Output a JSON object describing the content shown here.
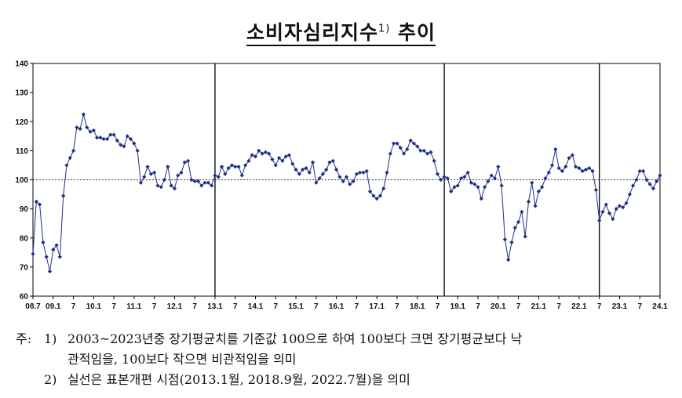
{
  "title": {
    "text": "소비자심리지수",
    "sup": "1)",
    "suffix": "추이"
  },
  "chart_data": {
    "type": "line",
    "title": "소비자심리지수 추이",
    "xlabel": "",
    "ylabel": "",
    "ylim": [
      60,
      140
    ],
    "y_ticks": [
      "60",
      "70",
      "80",
      "90",
      "100",
      "110",
      "120",
      "130",
      "140"
    ],
    "x_tick_labels": [
      "08.7",
      "09.1",
      "7",
      "10.1",
      "7",
      "11.1",
      "7",
      "12.1",
      "7",
      "13.1",
      "7",
      "14.1",
      "7",
      "15.1",
      "7",
      "16.1",
      "7",
      "17.1",
      "7",
      "18.1",
      "7",
      "19.1",
      "7",
      "20.1",
      "7",
      "21.1",
      "7",
      "22.1",
      "7",
      "23.1",
      "7",
      "24.1"
    ],
    "reference_line": 100,
    "sample_breaks": [
      "2013.1",
      "2018.9",
      "2022.7"
    ],
    "grid": false,
    "legend": "none",
    "colors": {
      "series": "#1f2f86",
      "reference": "#333333",
      "breaks": "#000000"
    },
    "start": "2008.7",
    "series": [
      {
        "values": [
          74.5,
          92.5,
          91.5,
          78.5,
          73.5,
          68.5,
          76.0,
          77.5,
          73.5,
          94.5,
          105.0,
          107.5,
          110.0,
          118.0,
          117.5,
          122.5,
          118.0,
          116.5,
          117.0,
          114.5,
          114.5,
          114.0,
          114.0,
          115.5,
          115.5,
          113.5,
          112.0,
          111.5,
          115.0,
          114.0,
          112.5,
          110.0,
          99.0,
          101.0,
          104.5,
          102.0,
          102.5,
          98.0,
          97.5,
          100.0,
          104.5,
          98.0,
          97.0,
          101.5,
          102.5,
          106.0,
          106.5,
          100.0,
          99.5,
          99.5,
          98.0,
          99.0,
          99.0,
          98.0,
          101.5,
          101.0,
          104.5,
          102.0,
          104.0,
          105.0,
          104.5,
          104.5,
          101.5,
          105.0,
          106.5,
          108.5,
          108.0,
          110.0,
          109.0,
          109.5,
          109.0,
          107.0,
          105.0,
          107.5,
          106.5,
          108.0,
          108.5,
          105.5,
          103.5,
          102.0,
          103.5,
          104.0,
          102.5,
          106.0,
          99.0,
          100.5,
          102.0,
          103.5,
          106.0,
          106.5,
          103.5,
          101.0,
          99.5,
          101.0,
          98.5,
          99.5,
          102.0,
          102.5,
          102.5,
          103.0,
          96.0,
          94.5,
          93.5,
          94.5,
          97.0,
          102.5,
          109.0,
          112.5,
          112.5,
          111.0,
          109.0,
          110.5,
          113.5,
          112.5,
          111.5,
          110.0,
          110.0,
          109.0,
          109.5,
          106.5,
          102.0,
          100.0,
          101.0,
          100.5,
          96.0,
          97.5,
          98.0,
          100.5,
          101.0,
          102.5,
          99.0,
          98.5,
          97.5,
          93.5,
          97.5,
          99.5,
          101.5,
          100.5,
          104.5,
          98.0,
          79.5,
          72.5,
          78.5,
          83.5,
          85.5,
          89.0,
          80.5,
          92.5,
          99.0,
          91.0,
          96.0,
          97.5,
          100.5,
          102.5,
          105.0,
          110.5,
          104.0,
          103.0,
          104.5,
          107.5,
          108.5,
          104.5,
          104.0,
          103.0,
          103.5,
          104.0,
          103.0,
          96.5,
          86.0,
          89.0,
          91.5,
          88.5,
          86.5,
          90.0,
          91.0,
          90.5,
          92.0,
          95.0,
          98.0,
          100.0,
          103.0,
          103.0,
          100.0,
          98.5,
          97.0,
          99.5,
          101.5
        ]
      }
    ]
  },
  "notes": {
    "prefix": "주:",
    "note1_num": "1)",
    "note1_line1": "2003~2023년중 장기평균치를 기준값 100으로 하여 100보다 크면 장기평균보다 낙",
    "note1_line2": "관적임을, 100보다 작으면 비관적임을 의미",
    "note2_num": "2)",
    "note2_line1": "실선은 표본개편 시점(2013.1월, 2018.9월, 2022.7월)을 의미"
  }
}
